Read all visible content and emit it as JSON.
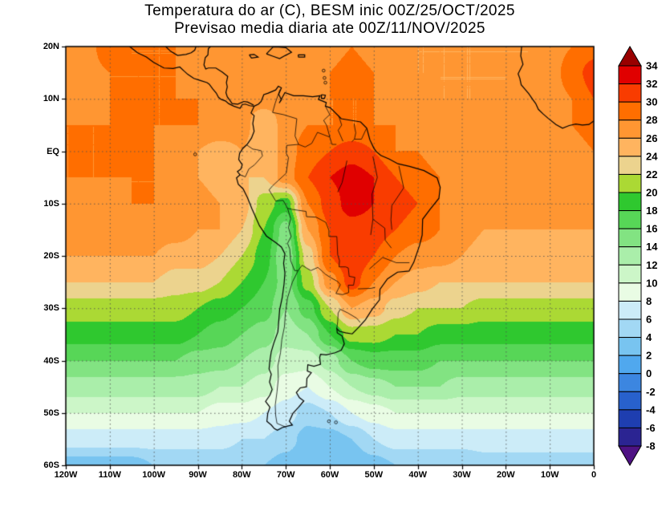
{
  "title": {
    "line1": "Temperatura do ar (C), BESM inic 00Z/25/OCT/2025",
    "line2": "Previsao media diaria ate 00Z/11/NOV/2025"
  },
  "colors": {
    "background": "#ffffff",
    "coastline": "#000000",
    "border_line": "#000000",
    "gridline": "rgba(80,80,80,0.85)",
    "axis": "#000000",
    "text": "#000000"
  },
  "chart_data": {
    "type": "heatmap",
    "title": "Temperatura do ar (C), BESM inic 00Z/25/OCT/2025",
    "subtitle": "Previsao media diaria ate 00Z/11/NOV/2025",
    "units": "C",
    "projection": {
      "lon_range": [
        -120,
        0
      ],
      "lat_range": [
        -60,
        20
      ]
    },
    "x_axis": {
      "ticks": [
        {
          "lon": -120,
          "label": "120W"
        },
        {
          "lon": -110,
          "label": "110W"
        },
        {
          "lon": -100,
          "label": "100W"
        },
        {
          "lon": -90,
          "label": "90W"
        },
        {
          "lon": -80,
          "label": "80W"
        },
        {
          "lon": -70,
          "label": "70W"
        },
        {
          "lon": -60,
          "label": "60W"
        },
        {
          "lon": -50,
          "label": "50W"
        },
        {
          "lon": -40,
          "label": "40W"
        },
        {
          "lon": -30,
          "label": "30W"
        },
        {
          "lon": -20,
          "label": "20W"
        },
        {
          "lon": -10,
          "label": "10W"
        },
        {
          "lon": 0,
          "label": "0"
        }
      ]
    },
    "y_axis": {
      "ticks": [
        {
          "lat": 20,
          "label": "20N"
        },
        {
          "lat": 10,
          "label": "10N"
        },
        {
          "lat": 0,
          "label": "EQ"
        },
        {
          "lat": -10,
          "label": "10S"
        },
        {
          "lat": -20,
          "label": "20S"
        },
        {
          "lat": -30,
          "label": "30S"
        },
        {
          "lat": -40,
          "label": "40S"
        },
        {
          "lat": -50,
          "label": "50S"
        },
        {
          "lat": -60,
          "label": "60S"
        }
      ]
    },
    "colorbar": {
      "boundaries": [
        34,
        32,
        30,
        28,
        26,
        24,
        22,
        20,
        18,
        16,
        14,
        12,
        10,
        8,
        6,
        4,
        2,
        0,
        -2,
        -4,
        -6,
        -8
      ],
      "labels": [
        "34",
        "32",
        "30",
        "28",
        "26",
        "24",
        "22",
        "20",
        "18",
        "16",
        "14",
        "12",
        "10",
        "8",
        "6",
        "4",
        "2",
        "0",
        "-2",
        "-4",
        "-6",
        "-8"
      ],
      "colors_hot_to_cold": [
        "#990000",
        "#e00000",
        "#f93c00",
        "#ff6e00",
        "#ff9632",
        "#ffb45f",
        "#ecd38e",
        "#abd934",
        "#2fc82f",
        "#57d657",
        "#82e382",
        "#aaeeaa",
        "#ccf6c8",
        "#e9fce4",
        "#ccecf8",
        "#a2d8f4",
        "#78c4f0",
        "#50a8ee",
        "#3c86e0",
        "#2861cc",
        "#1e3eb0",
        "#2b2492",
        "#4e1283"
      ]
    },
    "grid": {
      "lon_start": -120,
      "lon_step": 5,
      "lat_start": 20,
      "lat_step": -5,
      "temps_c": [
        [
          27,
          27,
          30,
          28,
          28,
          28,
          27,
          27,
          27,
          27,
          27,
          27,
          27,
          28,
          27,
          26,
          26,
          26,
          26,
          26,
          26,
          26,
          27,
          28,
          29
        ],
        [
          27,
          27,
          28,
          28,
          28,
          28,
          27,
          27,
          27,
          27,
          27,
          27,
          28,
          29,
          28,
          27,
          26,
          26,
          26,
          26,
          26,
          26,
          27,
          29,
          31
        ],
        [
          27,
          27,
          28,
          28,
          28,
          28,
          28,
          27,
          27,
          27,
          27,
          27,
          28,
          28,
          28,
          27,
          27,
          26,
          26,
          26,
          26,
          27,
          27,
          28,
          30
        ],
        [
          28,
          28,
          28,
          28,
          28,
          28,
          28,
          28,
          27,
          24,
          27,
          28,
          28,
          28,
          28,
          28,
          27,
          27,
          27,
          27,
          27,
          27,
          27,
          28,
          29
        ],
        [
          28,
          28,
          28,
          28,
          28,
          27,
          26,
          25,
          26,
          24,
          27,
          29,
          30,
          31,
          30,
          28,
          28,
          27,
          27,
          27,
          27,
          27,
          27,
          27,
          28
        ],
        [
          28,
          28,
          28,
          28,
          28,
          27,
          26,
          25,
          24,
          24,
          27,
          30,
          32,
          33,
          32,
          30,
          29,
          28,
          27,
          27,
          27,
          27,
          27,
          27,
          28
        ],
        [
          27,
          27,
          27,
          28,
          28,
          27,
          27,
          26,
          25,
          21,
          19,
          28,
          31,
          33,
          32,
          31,
          30,
          28,
          27,
          27,
          27,
          27,
          27,
          27,
          27
        ],
        [
          27,
          27,
          27,
          27,
          27,
          27,
          26,
          26,
          24,
          20,
          15,
          26,
          30,
          31,
          31,
          30,
          29,
          28,
          27,
          26,
          26,
          26,
          26,
          26,
          26
        ],
        [
          26,
          26,
          26,
          26,
          26,
          25,
          25,
          24,
          22,
          19,
          14,
          23,
          30,
          32,
          30,
          28,
          27,
          27,
          26,
          25,
          25,
          25,
          25,
          25,
          25
        ],
        [
          24,
          24,
          24,
          24,
          24,
          23,
          23,
          22,
          20,
          18,
          15,
          21,
          27,
          31,
          28,
          26,
          25,
          24,
          24,
          24,
          24,
          24,
          24,
          24,
          24
        ],
        [
          21,
          21,
          21,
          21,
          21,
          21,
          20,
          19,
          18,
          17,
          14,
          17,
          22,
          26,
          25,
          23,
          22,
          22,
          22,
          21,
          21,
          21,
          21,
          21,
          21
        ],
        [
          19,
          19,
          19,
          19,
          19,
          19,
          18,
          17,
          16,
          15,
          13,
          14,
          18,
          21,
          21,
          20,
          20,
          19,
          19,
          19,
          19,
          19,
          19,
          19,
          19
        ],
        [
          16,
          16,
          16,
          16,
          16,
          16,
          15,
          15,
          14,
          13,
          11,
          11,
          13,
          16,
          17,
          17,
          17,
          16,
          16,
          16,
          16,
          16,
          16,
          16,
          16
        ],
        [
          13,
          13,
          13,
          13,
          13,
          13,
          13,
          12,
          12,
          11,
          9,
          8,
          10,
          12,
          13,
          14,
          14,
          14,
          13,
          13,
          13,
          13,
          13,
          13,
          13
        ],
        [
          10,
          10,
          10,
          10,
          10,
          10,
          10,
          9,
          9,
          8,
          7,
          5,
          6,
          8,
          9,
          10,
          10,
          10,
          10,
          10,
          10,
          10,
          10,
          10,
          10
        ],
        [
          7,
          7,
          7,
          7,
          7,
          7,
          7,
          7,
          6,
          6,
          5,
          3,
          3,
          4,
          6,
          7,
          7,
          7,
          7,
          7,
          7,
          7,
          7,
          7,
          7
        ],
        [
          3,
          3,
          3,
          3,
          4,
          4,
          4,
          4,
          4,
          4,
          3,
          2,
          2,
          2,
          3,
          4,
          4,
          4,
          4,
          5,
          5,
          5,
          5,
          5,
          5
        ]
      ]
    }
  }
}
